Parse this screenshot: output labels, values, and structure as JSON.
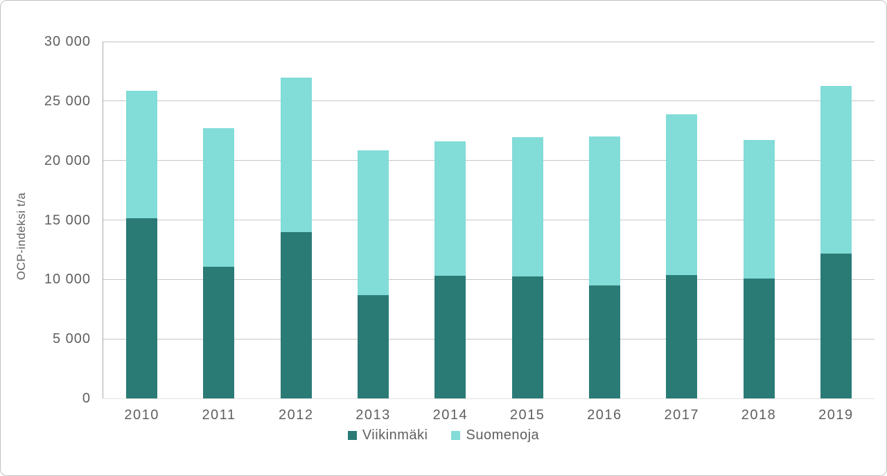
{
  "chart_data": {
    "type": "bar",
    "stacked": true,
    "title": "",
    "categories": [
      "2010",
      "2011",
      "2012",
      "2013",
      "2014",
      "2015",
      "2016",
      "2017",
      "2018",
      "2019"
    ],
    "series": [
      {
        "name": "Viikinmäki",
        "color": "#2a7b76",
        "values": [
          15150,
          11050,
          14000,
          8700,
          10300,
          10250,
          9500,
          10350,
          10050,
          12200
        ]
      },
      {
        "name": "Suomenoja",
        "color": "#82dcd7",
        "values": [
          10700,
          11650,
          13000,
          12150,
          11300,
          11700,
          12500,
          13550,
          11700,
          14050
        ]
      }
    ],
    "stack_totals": [
      25850,
      22700,
      27000,
      20850,
      21600,
      21950,
      22000,
      23900,
      21750,
      26250
    ],
    "xlabel": "",
    "ylabel": "OCP-indeksi t/a",
    "ylim": [
      0,
      30000
    ],
    "ytick_step": 5000,
    "ytick_labels": [
      "0",
      "5 000",
      "10 000",
      "15 000",
      "20 000",
      "25 000",
      "30 000"
    ],
    "grid": true,
    "legend_position": "bottom",
    "colors": {
      "grid": "#c6c6c6",
      "axis": "#a9a9a9",
      "text": "#5f5f5f",
      "background": "#ffffff"
    }
  }
}
